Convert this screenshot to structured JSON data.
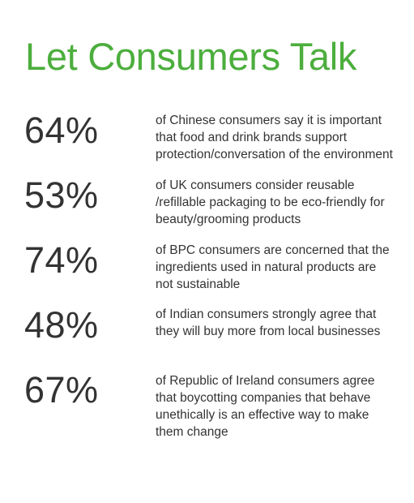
{
  "title": "Let Consumers Talk",
  "colors": {
    "title": "#4cae3d",
    "text": "#333333",
    "background": "#ffffff"
  },
  "stats": [
    {
      "value": "64%",
      "lines": [
        "of Chinese consumers say it is important",
        "that food and drink brands support",
        "protection/conversation of the environment"
      ]
    },
    {
      "value": "53%",
      "lines": [
        "of UK consumers consider reusable",
        "/refillable packaging to be eco-friendly for",
        "beauty/grooming products"
      ]
    },
    {
      "value": "74%",
      "lines": [
        "of BPC consumers are concerned that the",
        "ingredients used in natural products are",
        "not sustainable"
      ]
    },
    {
      "value": "48%",
      "lines": [
        "of Indian consumers strongly agree that",
        "they will buy more from local businesses"
      ]
    },
    {
      "value": "67%",
      "lines": [
        "of Republic of Ireland consumers agree",
        "that boycotting companies that behave",
        "unethically is an effective way to make",
        "them change"
      ]
    }
  ]
}
